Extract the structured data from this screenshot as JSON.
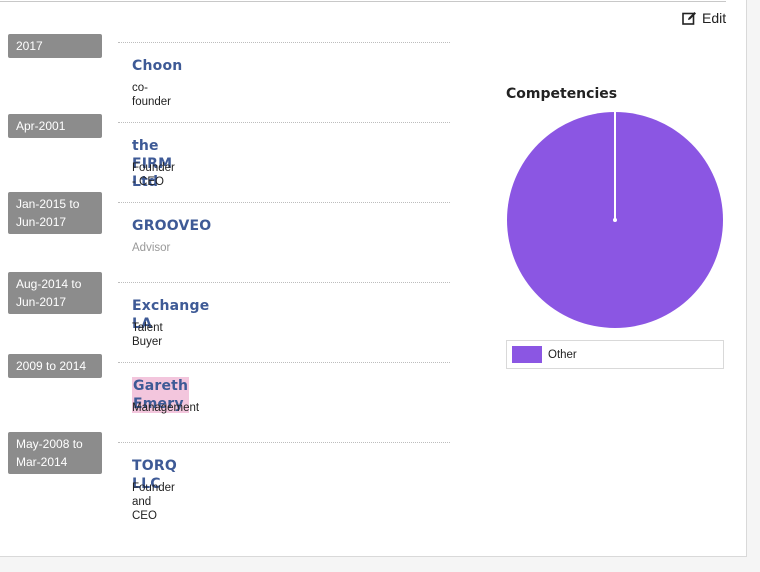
{
  "header": {
    "edit_label": "Edit"
  },
  "timeline": [
    {
      "date": "2017",
      "company": "Choon",
      "role": "co-founder",
      "highlight": false,
      "muted": false
    },
    {
      "date": "Apr-2001",
      "company": "the FIRM Ltd",
      "role": "Founder - CEO",
      "highlight": false,
      "muted": false
    },
    {
      "date": "Jan-2015 to Jun-2017",
      "company": "GROOVEO",
      "role": "Advisor",
      "highlight": false,
      "muted": true
    },
    {
      "date": "Aug-2014 to Jun-2017",
      "company": "Exchange LA",
      "role": "Talent Buyer",
      "highlight": false,
      "muted": false
    },
    {
      "date": "2009 to 2014",
      "company": "Gareth Emery",
      "role": "Management",
      "highlight": true,
      "muted": false
    },
    {
      "date": "May-2008 to Mar-2014",
      "company": "TORQ LLC",
      "role": "Founder and CEO",
      "highlight": false,
      "muted": false
    }
  ],
  "competencies": {
    "title": "Competencies"
  },
  "chart_data": {
    "type": "pie",
    "title": "Competencies",
    "slices": [
      {
        "label": "Other",
        "value": 100,
        "color": "#8b56e3"
      }
    ],
    "legend": "bottom"
  }
}
